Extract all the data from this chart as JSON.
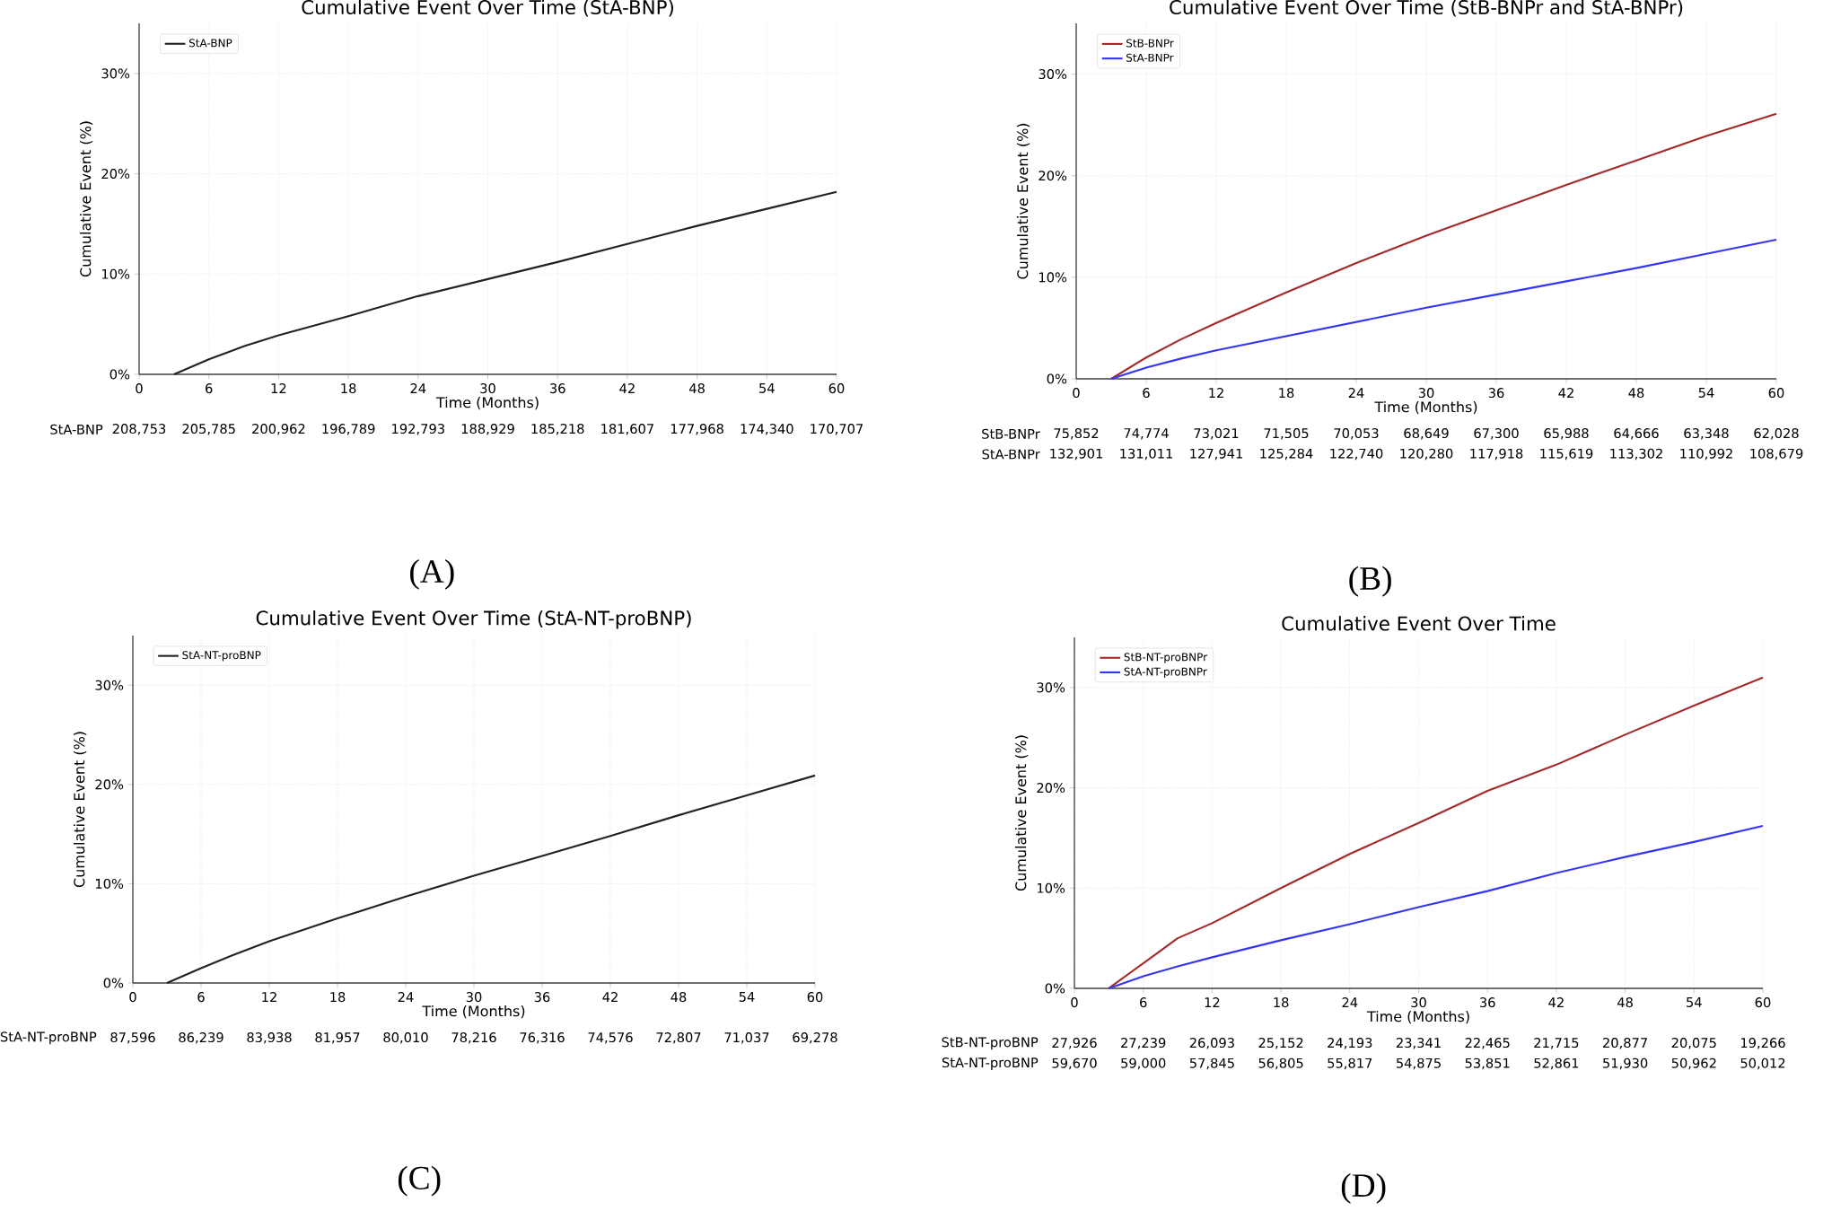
{
  "chart_data": [
    {
      "type": "line",
      "title": "Cumulative Event Over Time (StA-BNP)",
      "xlabel": "Time (Months)",
      "ylabel": "Cumulative Event (%)",
      "x": [
        3,
        6,
        9,
        12,
        18,
        24,
        30,
        36,
        42,
        48,
        54,
        60
      ],
      "series": [
        {
          "name": "StA-BNP",
          "color": "#222222",
          "values": [
            0,
            1.5,
            2.8,
            3.9,
            5.8,
            7.8,
            9.5,
            11.2,
            13.0,
            14.8,
            16.5,
            18.2
          ]
        }
      ],
      "xlim": [
        0,
        60
      ],
      "xticks": [
        0,
        6,
        12,
        18,
        24,
        30,
        36,
        42,
        48,
        54,
        60
      ],
      "ylim": [
        0,
        35
      ],
      "yticks": [
        {
          "value": 0,
          "label": "0%"
        },
        {
          "value": 10,
          "label": "10%"
        },
        {
          "value": 20,
          "label": "20%"
        },
        {
          "value": 30,
          "label": "30%"
        }
      ],
      "grid": true,
      "legend": "top left",
      "marker": "none",
      "line_style": "solid",
      "annotations": [
        "StA-BNP",
        "208,753",
        "205,785",
        "200,962",
        "196,789",
        "192,793",
        "188,929",
        "185,218",
        "181,607",
        "177,968",
        "174,340",
        "170,707",
        "(A)"
      ]
    },
    {
      "type": "line",
      "title": "Cumulative Event Over Time (StB-BNPr and StA-BNPr)",
      "xlabel": "Time (Months)",
      "ylabel": "Cumulative Event (%)",
      "x": [
        3,
        6,
        9,
        12,
        18,
        24,
        30,
        36,
        42,
        48,
        54,
        60
      ],
      "series": [
        {
          "name": "StB-BNPr",
          "color": "#a52a2a",
          "values": [
            0,
            2.1,
            3.9,
            5.5,
            8.5,
            11.4,
            14.1,
            16.6,
            19.1,
            21.5,
            23.9,
            26.1
          ]
        },
        {
          "name": "StA-BNPr",
          "color": "#3535f5",
          "values": [
            0,
            1.1,
            2.0,
            2.8,
            4.2,
            5.6,
            7.0,
            8.3,
            9.6,
            10.9,
            12.3,
            13.7
          ]
        }
      ],
      "xlim": [
        0,
        60
      ],
      "xticks": [
        0,
        6,
        12,
        18,
        24,
        30,
        36,
        42,
        48,
        54,
        60
      ],
      "ylim": [
        0,
        35
      ],
      "yticks": [
        {
          "value": 0,
          "label": "0%"
        },
        {
          "value": 10,
          "label": "10%"
        },
        {
          "value": 20,
          "label": "20%"
        },
        {
          "value": 30,
          "label": "30%"
        }
      ],
      "grid": true,
      "legend": "top left",
      "marker": "none",
      "line_style": "solid",
      "annotations": [
        "StB-BNPr",
        "75,852",
        "74,774",
        "73,021",
        "71,505",
        "70,053",
        "68,649",
        "67,300",
        "65,988",
        "64,666",
        "63,348",
        "62,028",
        "StA-BNPr",
        "132,901",
        "131,011",
        "127,941",
        "125,284",
        "122,740",
        "120,280",
        "117,918",
        "115,619",
        "113,302",
        "110,992",
        "108,679",
        "(B)"
      ]
    },
    {
      "type": "line",
      "title": "Cumulative Event Over Time (StA-NT-proBNP)",
      "xlabel": "Time (Months)",
      "ylabel": "Cumulative Event (%)",
      "x": [
        3,
        6,
        9,
        12,
        18,
        24,
        30,
        36,
        42,
        48,
        54,
        60
      ],
      "series": [
        {
          "name": "StA-NT-proBNP",
          "color": "#222222",
          "values": [
            0,
            1.5,
            2.9,
            4.2,
            6.5,
            8.7,
            10.8,
            12.8,
            14.8,
            16.9,
            18.9,
            20.9
          ]
        }
      ],
      "xlim": [
        0,
        60
      ],
      "xticks": [
        0,
        6,
        12,
        18,
        24,
        30,
        36,
        42,
        48,
        54,
        60
      ],
      "ylim": [
        0,
        35
      ],
      "yticks": [
        {
          "value": 0,
          "label": "0%"
        },
        {
          "value": 10,
          "label": "10%"
        },
        {
          "value": 20,
          "label": "20%"
        },
        {
          "value": 30,
          "label": "30%"
        }
      ],
      "grid": true,
      "legend": "top left",
      "marker": "none",
      "line_style": "solid",
      "annotations": [
        "StA-NT-proBNP",
        "87,596",
        "86,239",
        "83,938",
        "81,957",
        "80,010",
        "78,216",
        "76,316",
        "74,576",
        "72,807",
        "71,037",
        "69,278",
        "(C)"
      ]
    },
    {
      "type": "line",
      "title": "Cumulative Event Over Time",
      "xlabel": "Time (Months)",
      "ylabel": "Cumulative Event (%)",
      "x": [
        3,
        6,
        9,
        12,
        18,
        24,
        30,
        36,
        42,
        48,
        54,
        60
      ],
      "series": [
        {
          "name": "StB-NT-proBNPr",
          "color": "#a52a2a",
          "values": [
            0,
            2.5,
            5.0,
            6.5,
            10.0,
            13.4,
            16.5,
            19.7,
            22.3,
            25.3,
            28.2,
            31.0
          ]
        },
        {
          "name": "StA-NT-proBNPr",
          "color": "#3535f5",
          "values": [
            0,
            1.2,
            2.2,
            3.1,
            4.8,
            6.4,
            8.1,
            9.7,
            11.5,
            13.1,
            14.6,
            16.2
          ]
        }
      ],
      "xlim": [
        0,
        60
      ],
      "xticks": [
        0,
        6,
        12,
        18,
        24,
        30,
        36,
        42,
        48,
        54,
        60
      ],
      "ylim": [
        0,
        35
      ],
      "yticks": [
        {
          "value": 0,
          "label": "0%"
        },
        {
          "value": 10,
          "label": "10%"
        },
        {
          "value": 20,
          "label": "20%"
        },
        {
          "value": 30,
          "label": "30%"
        }
      ],
      "grid": true,
      "legend": "top left",
      "marker": "none",
      "line_style": "solid",
      "annotations": [
        "StB-NT-proBNP",
        "27,926",
        "27,239",
        "26,093",
        "25,152",
        "24,193",
        "23,341",
        "22,465",
        "21,715",
        "20,877",
        "20,075",
        "19,266",
        "StA-NT-proBNP",
        "59,670",
        "59,000",
        "57,845",
        "56,805",
        "55,817",
        "54,875",
        "53,851",
        "52,861",
        "51,930",
        "50,962",
        "50,012",
        "(D)"
      ]
    }
  ]
}
